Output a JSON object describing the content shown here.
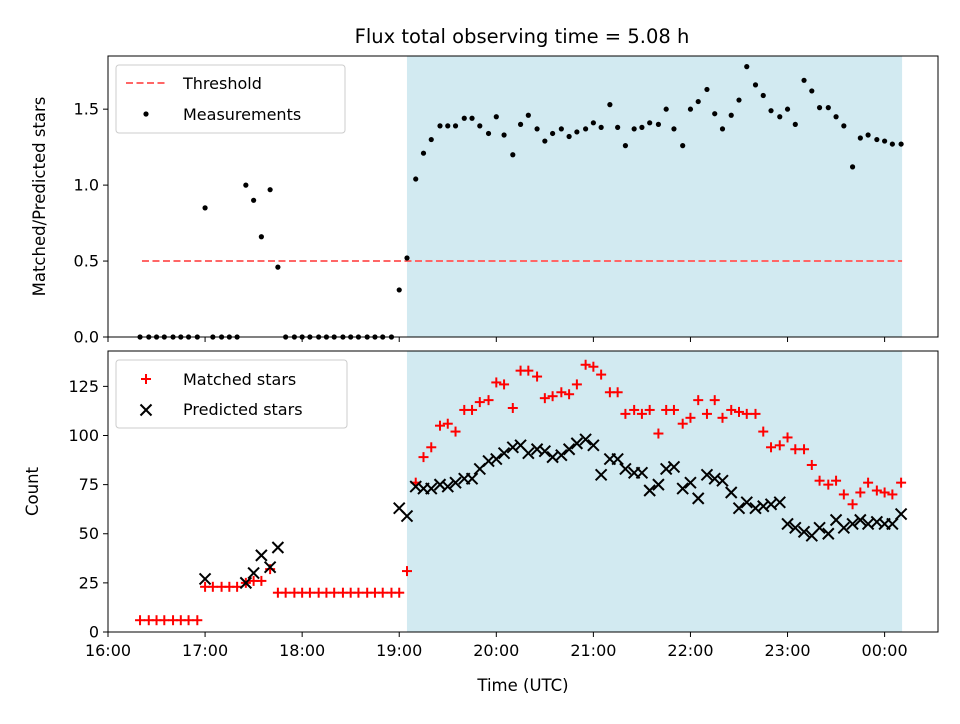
{
  "title": "Flux total observing time = 5.08 h",
  "colors": {
    "shade": "#add8e6",
    "threshold": "#ff6666",
    "matched": "#ff0000",
    "predicted": "#000000",
    "measure": "#000000"
  },
  "chart_data": [
    {
      "type": "scatter",
      "panel": "top",
      "ylabel": "Matched/Predicted stars",
      "xlabel": "",
      "xlim": [
        16.0,
        24.55
      ],
      "ylim": [
        0,
        1.85
      ],
      "yticks": [
        0.0,
        0.5,
        1.0,
        1.5
      ],
      "ytick_labels": [
        "0.0",
        "0.5",
        "1.0",
        "1.5"
      ],
      "xticks": [
        16,
        17,
        18,
        19,
        20,
        21,
        22,
        23,
        24
      ],
      "shaded_span": [
        19.08,
        24.18
      ],
      "threshold": {
        "name": "Threshold",
        "y": 0.5,
        "x": [
          16.35,
          24.18
        ]
      },
      "legend": [
        "Threshold",
        "Measurements"
      ],
      "legend_position": "top-left",
      "series": [
        {
          "name": "Measurements",
          "x": [
            16.33,
            16.42,
            16.5,
            16.58,
            16.67,
            16.75,
            16.83,
            16.92,
            17.0,
            17.08,
            17.17,
            17.25,
            17.33,
            17.42,
            17.5,
            17.58,
            17.67,
            17.75,
            17.83,
            17.92,
            18.0,
            18.08,
            18.17,
            18.25,
            18.33,
            18.42,
            18.5,
            18.58,
            18.67,
            18.75,
            18.83,
            18.92,
            19.0,
            19.08,
            19.17,
            19.25,
            19.33,
            19.42,
            19.5,
            19.58,
            19.67,
            19.75,
            19.83,
            19.92,
            20.0,
            20.08,
            20.17,
            20.25,
            20.33,
            20.42,
            20.5,
            20.58,
            20.67,
            20.75,
            20.83,
            20.92,
            21.0,
            21.08,
            21.17,
            21.25,
            21.33,
            21.42,
            21.5,
            21.58,
            21.67,
            21.75,
            21.83,
            21.92,
            22.0,
            22.08,
            22.17,
            22.25,
            22.33,
            22.42,
            22.5,
            22.58,
            22.67,
            22.75,
            22.83,
            22.92,
            23.0,
            23.08,
            23.17,
            23.25,
            23.33,
            23.42,
            23.5,
            23.58,
            23.67,
            23.75,
            23.83,
            23.92,
            24.0,
            24.08,
            24.17
          ],
          "y": [
            0,
            0,
            0,
            0,
            0,
            0,
            0,
            0,
            0.85,
            0,
            0,
            0,
            0,
            1.0,
            0.9,
            0.66,
            0.97,
            0.46,
            0,
            0,
            0,
            0,
            0,
            0,
            0,
            0,
            0,
            0,
            0,
            0,
            0,
            0,
            0.31,
            0.52,
            1.04,
            1.21,
            1.3,
            1.39,
            1.39,
            1.39,
            1.44,
            1.44,
            1.39,
            1.34,
            1.45,
            1.33,
            1.2,
            1.4,
            1.46,
            1.37,
            1.29,
            1.34,
            1.37,
            1.32,
            1.35,
            1.37,
            1.41,
            1.38,
            1.53,
            1.38,
            1.26,
            1.37,
            1.38,
            1.41,
            1.4,
            1.5,
            1.37,
            1.26,
            1.5,
            1.55,
            1.63,
            1.47,
            1.37,
            1.46,
            1.56,
            1.78,
            1.66,
            1.59,
            1.49,
            1.45,
            1.5,
            1.4,
            1.69,
            1.62,
            1.51,
            1.51,
            1.45,
            1.39,
            1.12,
            1.31,
            1.33,
            1.3,
            1.29,
            1.27,
            1.27
          ]
        }
      ]
    },
    {
      "type": "scatter",
      "panel": "bottom",
      "ylabel": "Count",
      "xlabel": "Time (UTC)",
      "xlim": [
        16.0,
        24.55
      ],
      "ylim": [
        0,
        143
      ],
      "yticks": [
        0,
        25,
        50,
        75,
        100,
        125
      ],
      "ytick_labels": [
        "0",
        "25",
        "50",
        "75",
        "100",
        "125"
      ],
      "xticks": [
        16,
        17,
        18,
        19,
        20,
        21,
        22,
        23,
        24
      ],
      "xtick_labels": [
        "16:00",
        "17:00",
        "18:00",
        "19:00",
        "20:00",
        "21:00",
        "22:00",
        "23:00",
        "00:00"
      ],
      "shaded_span": [
        19.08,
        24.18
      ],
      "legend": [
        "Matched stars",
        "Predicted stars"
      ],
      "legend_position": "top-left",
      "series": [
        {
          "name": "Matched stars",
          "marker": "plus",
          "x": [
            16.33,
            16.42,
            16.5,
            16.58,
            16.67,
            16.75,
            16.83,
            16.92,
            17.0,
            17.08,
            17.17,
            17.25,
            17.33,
            17.42,
            17.5,
            17.58,
            17.67,
            17.75,
            17.83,
            17.92,
            18.0,
            18.08,
            18.17,
            18.25,
            18.33,
            18.42,
            18.5,
            18.58,
            18.67,
            18.75,
            18.83,
            18.92,
            19.0,
            19.08,
            19.17,
            19.25,
            19.33,
            19.42,
            19.5,
            19.58,
            19.67,
            19.75,
            19.83,
            19.92,
            20.0,
            20.08,
            20.17,
            20.25,
            20.33,
            20.42,
            20.5,
            20.58,
            20.67,
            20.75,
            20.83,
            20.92,
            21.0,
            21.08,
            21.17,
            21.25,
            21.33,
            21.42,
            21.5,
            21.58,
            21.67,
            21.75,
            21.83,
            21.92,
            22.0,
            22.08,
            22.17,
            22.25,
            22.33,
            22.42,
            22.5,
            22.58,
            22.67,
            22.75,
            22.83,
            22.92,
            23.0,
            23.08,
            23.17,
            23.25,
            23.33,
            23.42,
            23.5,
            23.58,
            23.67,
            23.75,
            23.83,
            23.92,
            24.0,
            24.08,
            24.17
          ],
          "y": [
            6,
            6,
            6,
            6,
            6,
            6,
            6,
            6,
            23,
            23,
            23,
            23,
            23,
            25,
            26,
            26,
            32,
            20,
            20,
            20,
            20,
            20,
            20,
            20,
            20,
            20,
            20,
            20,
            20,
            20,
            20,
            20,
            20,
            31,
            76,
            89,
            94,
            105,
            106,
            102,
            113,
            113,
            117,
            118,
            127,
            126,
            114,
            133,
            133,
            130,
            119,
            120,
            122,
            121,
            126,
            136,
            135,
            131,
            122,
            122,
            111,
            113,
            111,
            113,
            101,
            113,
            113,
            106,
            109,
            118,
            111,
            118,
            109,
            113,
            112,
            111,
            111,
            102,
            94,
            95,
            99,
            93,
            93,
            85,
            77,
            75,
            77,
            70,
            65,
            71,
            76,
            72,
            71,
            70,
            76
          ]
        },
        {
          "name": "Predicted stars",
          "marker": "x",
          "x": [
            17.0,
            17.42,
            17.5,
            17.58,
            17.67,
            17.75,
            19.0,
            19.08,
            19.17,
            19.25,
            19.33,
            19.42,
            19.5,
            19.58,
            19.67,
            19.75,
            19.83,
            19.92,
            20.0,
            20.08,
            20.17,
            20.25,
            20.33,
            20.42,
            20.5,
            20.58,
            20.67,
            20.75,
            20.83,
            20.92,
            21.0,
            21.08,
            21.17,
            21.25,
            21.33,
            21.42,
            21.5,
            21.58,
            21.67,
            21.75,
            21.83,
            21.92,
            22.0,
            22.08,
            22.17,
            22.25,
            22.33,
            22.42,
            22.5,
            22.58,
            22.67,
            22.75,
            22.83,
            22.92,
            23.0,
            23.08,
            23.17,
            23.25,
            23.33,
            23.42,
            23.5,
            23.58,
            23.67,
            23.75,
            23.83,
            23.92,
            24.0,
            24.08,
            24.17
          ],
          "y": [
            27,
            25,
            30,
            39,
            33,
            43,
            63,
            59,
            74,
            73,
            73,
            75,
            74,
            76,
            78,
            78,
            83,
            87,
            88,
            91,
            94,
            95,
            91,
            93,
            92,
            89,
            90,
            93,
            96,
            98,
            95,
            80,
            88,
            88,
            83,
            81,
            81,
            72,
            75,
            83,
            84,
            73,
            76,
            68,
            80,
            78,
            77,
            71,
            63,
            66,
            63,
            64,
            65,
            66,
            55,
            53,
            51,
            49,
            53,
            50,
            57,
            53,
            55,
            57,
            55,
            56,
            55,
            55,
            60
          ]
        }
      ]
    }
  ]
}
